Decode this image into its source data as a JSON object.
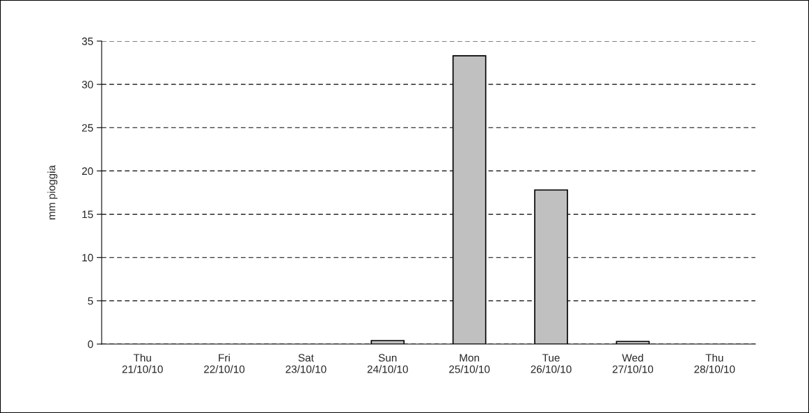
{
  "chart_data": {
    "type": "bar",
    "ylabel": "mm pioggia",
    "categories": [
      "Thu\n21/10/10",
      "Fri\n22/10/10",
      "Sat\n23/10/10",
      "Sun\n24/10/10",
      "Mon\n25/10/10",
      "Tue\n26/10/10",
      "Wed\n27/10/10",
      "Thu\n28/10/10"
    ],
    "values": [
      0,
      0,
      0,
      0.4,
      33.3,
      17.8,
      0.3,
      0
    ],
    "color": "#c0c0c0",
    "ylim": [
      0,
      35
    ],
    "yticks": [
      0,
      5,
      10,
      15,
      20,
      25,
      30,
      35
    ],
    "grid": "y"
  }
}
